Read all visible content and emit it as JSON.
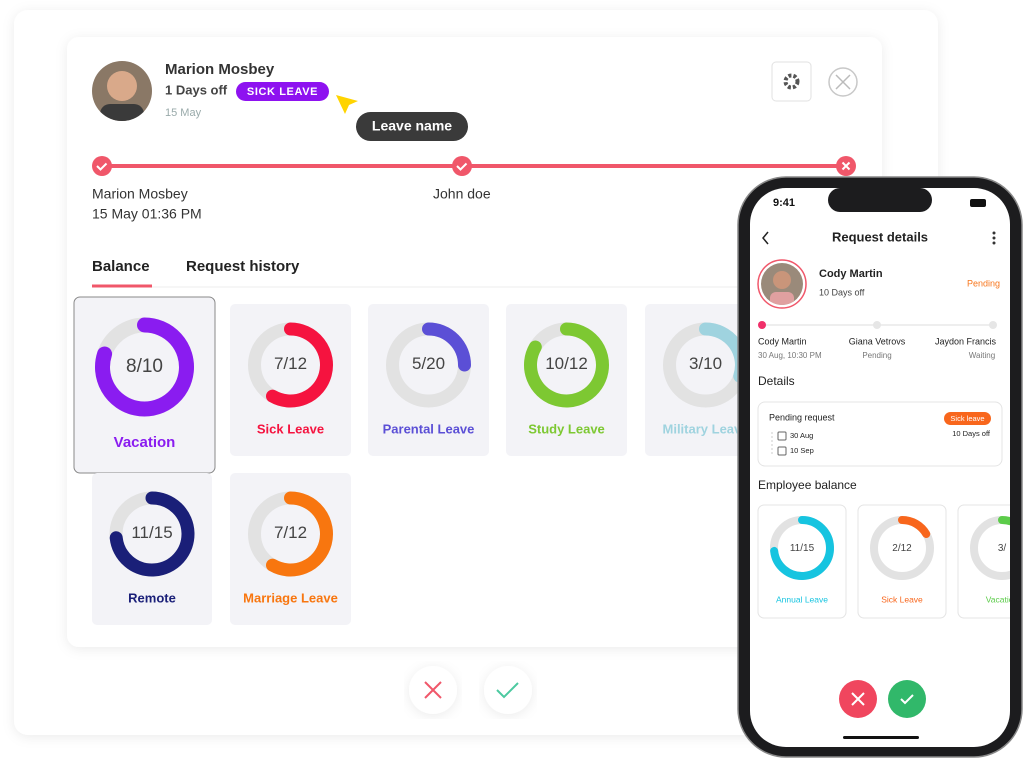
{
  "header": {
    "name": "Marion Mosbey",
    "days_off": "1 Days off",
    "leave_type": "SICK LEAVE",
    "date": "15 May",
    "tooltip": "Leave name"
  },
  "timeline": [
    {
      "name": "Marion Mosbey",
      "time": "15 May 01:36 PM"
    },
    {
      "name": "John doe"
    }
  ],
  "tabs": [
    "Balance",
    "Request history"
  ],
  "balances": [
    {
      "label": "Vacation",
      "used": 8,
      "total": 10,
      "color": "#8a1cf0"
    },
    {
      "label": "Sick Leave",
      "used": 7,
      "total": 12,
      "color": "#f5133f"
    },
    {
      "label": "Parental Leave",
      "used": 5,
      "total": 20,
      "color": "#5b4fd6"
    },
    {
      "label": "Study Leave",
      "used": 10,
      "total": 12,
      "color": "#7dc832"
    },
    {
      "label": "Military Leave",
      "used": 3,
      "total": 10,
      "color": "#9fd3df"
    },
    {
      "label": "Remote",
      "used": 11,
      "total": 15,
      "color": "#1a1f78"
    },
    {
      "label": "Marriage Leave",
      "used": 7,
      "total": 12,
      "color": "#f8760f"
    }
  ],
  "phone": {
    "time": "9:41",
    "title": "Request details",
    "employee": {
      "name": "Cody Martin",
      "days_off": "10 Days off",
      "status": "Pending"
    },
    "approvers": [
      {
        "name": "Cody Martin",
        "status": "30 Aug, 10:30 PM"
      },
      {
        "name": "Giana Vetrovs",
        "status": "Pending"
      },
      {
        "name": "Jaydon Francis",
        "status": "Waiting"
      }
    ],
    "details_title": "Details",
    "request": {
      "title": "Pending request",
      "leave_type": "Sick leave",
      "days": "10 Days off",
      "start": "30 Aug",
      "end": "10 Sep"
    },
    "balance_title": "Employee balance",
    "balances": [
      {
        "label": "Annual Leave",
        "used": 11,
        "total": 15,
        "color": "#16c4e0"
      },
      {
        "label": "Sick Leave",
        "used": 2,
        "total": 12,
        "color": "#f8661c"
      },
      {
        "label": "Vacation",
        "used": 3,
        "color": "#5ccc4a"
      }
    ]
  }
}
